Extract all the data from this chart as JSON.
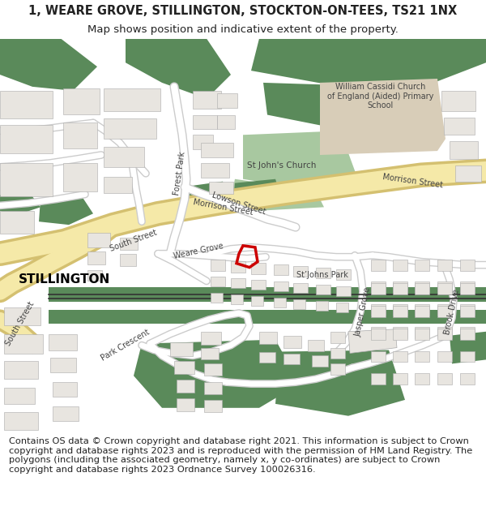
{
  "title_line1": "1, WEARE GROVE, STILLINGTON, STOCKTON-ON-TEES, TS21 1NX",
  "title_line2": "Map shows position and indicative extent of the property.",
  "footer_text": "Contains OS data © Crown copyright and database right 2021. This information is subject to Crown copyright and database rights 2023 and is reproduced with the permission of HM Land Registry. The polygons (including the associated geometry, namely x, y co-ordinates) are subject to Crown copyright and database rights 2023 Ordnance Survey 100026316.",
  "title_fontsize": 10.5,
  "subtitle_fontsize": 9.5,
  "footer_fontsize": 8.2,
  "fig_width": 6.0,
  "fig_height": 6.25,
  "dpi": 100,
  "map_bg": "#f5f3f0",
  "title_bg": "#ffffff",
  "green_dark": "#5a8a5a",
  "green_light": "#a8c8a0",
  "road_yellow_fill": "#f5e9a8",
  "road_yellow_edge": "#d4c070",
  "road_white": "#ffffff",
  "road_gray": "#cccccc",
  "building_face": "#e8e5e0",
  "building_edge": "#aaaaaa",
  "school_face": "#d8cdb8",
  "plot_color": "#cc0000",
  "text_dark": "#222222",
  "text_road": "#555555"
}
